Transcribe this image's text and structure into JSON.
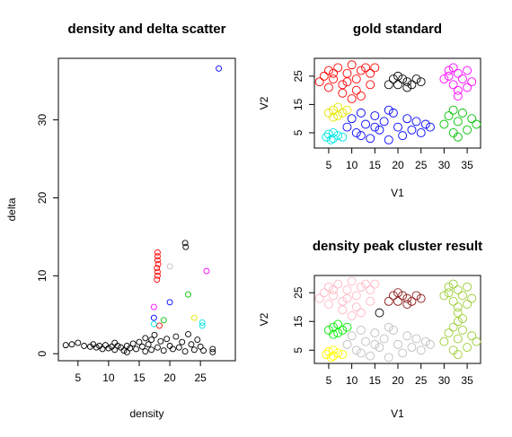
{
  "chart_data": [
    {
      "type": "scatter",
      "title": "density and delta scatter",
      "xlabel": "density",
      "ylabel": "delta",
      "xlim": [
        1.8,
        30.7
      ],
      "ylim": [
        -0.9,
        37.9
      ],
      "xticks": [
        5,
        10,
        15,
        20,
        25
      ],
      "yticks": [
        0,
        10,
        20,
        30
      ],
      "series": [
        {
          "color": "#000000",
          "x": [
            3,
            4,
            5,
            6,
            7,
            7.5,
            8,
            8.5,
            9,
            9.5,
            10,
            10.5,
            11,
            11.5,
            12,
            12.5,
            13,
            13.5,
            14,
            14.5,
            15,
            15.5,
            16,
            16.5,
            17,
            17,
            17.5,
            18,
            18.5,
            19,
            19.5,
            20,
            20.5,
            21,
            21.5,
            22,
            22.5,
            23,
            23.5,
            24,
            24.5,
            25,
            25.5,
            27,
            27,
            22.5,
            22.6,
            16,
            13,
            11
          ],
          "y": [
            1.1,
            1.2,
            1.4,
            1.0,
            0.9,
            1.2,
            0.8,
            1.0,
            0.6,
            1.1,
            0.7,
            0.9,
            0.5,
            1.0,
            0.8,
            0.4,
            1.0,
            0.7,
            1.3,
            0.6,
            1.5,
            0.9,
            2.0,
            1.2,
            0.5,
            1.8,
            2.4,
            0.8,
            1.6,
            0.4,
            1.9,
            1.0,
            0.6,
            2.2,
            0.8,
            1.5,
            0.3,
            2.5,
            1.2,
            0.5,
            1.8,
            0.9,
            0.4,
            0.6,
            0.2,
            14.2,
            13.7,
            0.3,
            0.2,
            1.4
          ]
        },
        {
          "color": "#ff0000",
          "x": [
            18,
            18,
            18,
            18.1,
            17.9,
            18,
            18,
            17.9,
            18.3
          ],
          "y": [
            13,
            12.5,
            12,
            11.5,
            11,
            10.5,
            10,
            9.5,
            3.6
          ]
        },
        {
          "color": "#ff00ff",
          "x": [
            17.4,
            26
          ],
          "y": [
            6,
            10.6
          ]
        },
        {
          "color": "#0000ff",
          "x": [
            17.4,
            20,
            28
          ],
          "y": [
            4.6,
            6.6,
            36.6
          ]
        },
        {
          "color": "#00e5e5",
          "x": [
            17.4,
            25.3,
            25.3
          ],
          "y": [
            3.8,
            4.0,
            3.6
          ]
        },
        {
          "color": "#00c000",
          "x": [
            19,
            23
          ],
          "y": [
            4.3,
            7.6
          ]
        },
        {
          "color": "#bebebe",
          "x": [
            20
          ],
          "y": [
            11.2
          ]
        },
        {
          "color": "#e5e500",
          "x": [
            24
          ],
          "y": [
            4.6
          ]
        }
      ]
    },
    {
      "type": "scatter",
      "title": "gold standard",
      "xlabel": "V1",
      "ylabel": "V2",
      "xlim": [
        1.9,
        37.9
      ],
      "ylim": [
        -0.4,
        31.3
      ],
      "xticks": [
        5,
        10,
        15,
        20,
        25,
        30,
        35
      ],
      "yticks": [
        5,
        15,
        25
      ],
      "series": [
        {
          "color": "#ff0000",
          "x": [
            3,
            4,
            5,
            6,
            7,
            8,
            9,
            10,
            11,
            12,
            13,
            14,
            15,
            5,
            8,
            11,
            12,
            14,
            10,
            6,
            9
          ],
          "y": [
            23,
            25,
            27,
            24,
            28,
            22,
            26,
            29,
            24,
            27,
            28,
            26,
            28,
            21,
            19,
            20,
            18,
            22,
            17,
            26,
            23
          ]
        },
        {
          "color": "#000000",
          "x": [
            18,
            19,
            20,
            21,
            22,
            23,
            24,
            25,
            20,
            22
          ],
          "y": [
            22,
            24,
            22,
            24,
            23,
            22,
            24,
            23,
            25,
            21
          ]
        },
        {
          "color": "#ff00ff",
          "x": [
            30,
            31,
            32,
            33,
            34,
            35,
            36,
            33,
            33,
            31,
            35,
            32
          ],
          "y": [
            24,
            27,
            22,
            26,
            24,
            27,
            23,
            20,
            18,
            25,
            21,
            28
          ]
        },
        {
          "color": "#e5e500",
          "x": [
            5,
            6,
            7,
            8,
            9,
            7,
            6
          ],
          "y": [
            12,
            13,
            11,
            12,
            13,
            14,
            10.5
          ]
        },
        {
          "color": "#00e5e5",
          "x": [
            4.5,
            5,
            6,
            7,
            8,
            6,
            5.5
          ],
          "y": [
            3.5,
            4.5,
            3,
            4,
            3.5,
            5,
            2.5
          ]
        },
        {
          "color": "#0000ff",
          "x": [
            9,
            10,
            11,
            12,
            13,
            14,
            15,
            16,
            17,
            18,
            19,
            20,
            21,
            22,
            23,
            24,
            25,
            26,
            27,
            12,
            18,
            15
          ],
          "y": [
            7,
            10,
            5,
            12,
            8,
            3,
            11,
            6,
            9,
            2.5,
            12,
            7,
            4,
            10,
            6,
            9,
            5,
            8,
            7,
            4,
            13,
            7
          ]
        },
        {
          "color": "#00c000",
          "x": [
            30,
            31,
            32,
            33,
            34,
            35,
            36,
            37,
            33,
            32
          ],
          "y": [
            8,
            11,
            5,
            9,
            12,
            6,
            10,
            8,
            3.5,
            13
          ]
        }
      ]
    },
    {
      "type": "scatter",
      "title": "density peak cluster result",
      "xlabel": "V1",
      "ylabel": "V2",
      "xlim": [
        1.9,
        37.9
      ],
      "ylim": [
        0.4,
        31
      ],
      "xticks": [
        5,
        10,
        15,
        20,
        25,
        30,
        35
      ],
      "yticks": [
        5,
        15,
        25
      ],
      "series": [
        {
          "color": "#ffb6c1",
          "x": [
            3,
            4,
            5,
            6,
            7,
            8,
            9,
            10,
            11,
            12,
            13,
            14,
            15,
            5,
            8,
            11,
            12,
            14,
            10,
            6,
            9
          ],
          "y": [
            23,
            25,
            27,
            24,
            28,
            22,
            26,
            29,
            24,
            27,
            28,
            26,
            28,
            21,
            19,
            20,
            18,
            22,
            17,
            26,
            23
          ]
        },
        {
          "color": "#8b1a1a",
          "x": [
            18,
            19,
            20,
            21,
            22,
            23,
            24,
            25,
            20,
            22
          ],
          "y": [
            22,
            24,
            22,
            24,
            23,
            22,
            24,
            23,
            25,
            21
          ]
        },
        {
          "color": "#000000",
          "x": [
            16
          ],
          "y": [
            18
          ]
        },
        {
          "color": "#9acd32",
          "x": [
            30,
            31,
            32,
            33,
            34,
            35,
            36,
            33,
            33,
            31,
            35,
            32,
            30,
            31,
            32,
            33,
            34,
            35,
            36,
            37,
            33,
            32,
            33,
            34
          ],
          "y": [
            24,
            27,
            22,
            26,
            24,
            27,
            23,
            20,
            18,
            25,
            21,
            28,
            8,
            11,
            5,
            9,
            12,
            6,
            10,
            8,
            3.5,
            13,
            15,
            16
          ]
        },
        {
          "color": "#00ee00",
          "x": [
            5,
            6,
            7,
            8,
            9,
            7,
            6
          ],
          "y": [
            12,
            13,
            11,
            12,
            13,
            14,
            10.5
          ]
        },
        {
          "color": "#ffff00",
          "x": [
            4.5,
            5,
            6,
            7,
            8,
            6,
            5.5
          ],
          "y": [
            3.5,
            4.5,
            3,
            4,
            3.5,
            5,
            2.5
          ]
        },
        {
          "color": "#bebebe",
          "x": [
            9,
            10,
            11,
            12,
            13,
            14,
            15,
            16,
            17,
            18,
            19,
            20,
            21,
            22,
            23,
            24,
            25,
            26,
            27,
            12,
            18,
            15
          ],
          "y": [
            7,
            10,
            5,
            12,
            8,
            3,
            11,
            6,
            9,
            2.5,
            12,
            7,
            4,
            10,
            6,
            9,
            5,
            8,
            7,
            4,
            13,
            7
          ]
        }
      ]
    }
  ]
}
